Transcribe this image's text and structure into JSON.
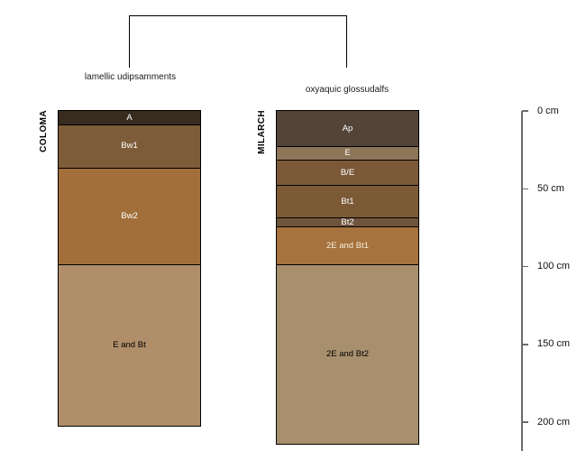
{
  "figure": {
    "background": "#ffffff",
    "line_color": "#000000",
    "axis_color": "#6b6b6b"
  },
  "dendrogram": {
    "labels": [
      {
        "text": "lamellic udipsamments"
      },
      {
        "text": "oxyaquic glossudalfs"
      }
    ]
  },
  "profiles": [
    {
      "series": "COLOMA",
      "subgroup": "lamellic udipsamments",
      "horizons": [
        {
          "label": "A",
          "top_cm": 0,
          "bottom_cm": 9,
          "color": "#382c1f",
          "label_color": "#ffffff"
        },
        {
          "label": "Bw1",
          "top_cm": 9,
          "bottom_cm": 37,
          "color": "#7e5c3a",
          "label_color": "#ffffff"
        },
        {
          "label": "Bw2",
          "top_cm": 37,
          "bottom_cm": 99,
          "color": "#a26f3b",
          "label_color": "#ffffff"
        },
        {
          "label": "E and Bt",
          "top_cm": 99,
          "bottom_cm": 202,
          "color": "#af8e69",
          "label_color": "#000000"
        }
      ]
    },
    {
      "series": "MILARCH",
      "subgroup": "oxyaquic glossudalfs",
      "horizons": [
        {
          "label": "Ap",
          "top_cm": 0,
          "bottom_cm": 23,
          "color": "#544438",
          "label_color": "#ffffff"
        },
        {
          "label": "E",
          "top_cm": 23,
          "bottom_cm": 32,
          "color": "#8d7657",
          "label_color": "#ffffff"
        },
        {
          "label": "B/E",
          "top_cm": 32,
          "bottom_cm": 48,
          "color": "#7b5938",
          "label_color": "#ffffff"
        },
        {
          "label": "Bt1",
          "top_cm": 48,
          "bottom_cm": 69,
          "color": "#7c5a36",
          "label_color": "#ffffff"
        },
        {
          "label": "Bt2",
          "top_cm": 69,
          "bottom_cm": 75,
          "color": "#6f543d",
          "label_color": "#ffffff"
        },
        {
          "label": "2E and Bt1",
          "top_cm": 75,
          "bottom_cm": 99,
          "color": "#a6723d",
          "label_color": "#f5ecdb"
        },
        {
          "label": "2E and Bt2",
          "top_cm": 99,
          "bottom_cm": 214,
          "color": "#a8906f",
          "label_color": "#000000"
        }
      ]
    }
  ],
  "depth_axis": {
    "unit": "cm",
    "ticks": [
      {
        "depth_cm": 0,
        "label": "0 cm"
      },
      {
        "depth_cm": 50,
        "label": "50 cm"
      },
      {
        "depth_cm": 100,
        "label": "100 cm"
      },
      {
        "depth_cm": 150,
        "label": "150 cm"
      },
      {
        "depth_cm": 200,
        "label": "200 cm"
      }
    ]
  }
}
